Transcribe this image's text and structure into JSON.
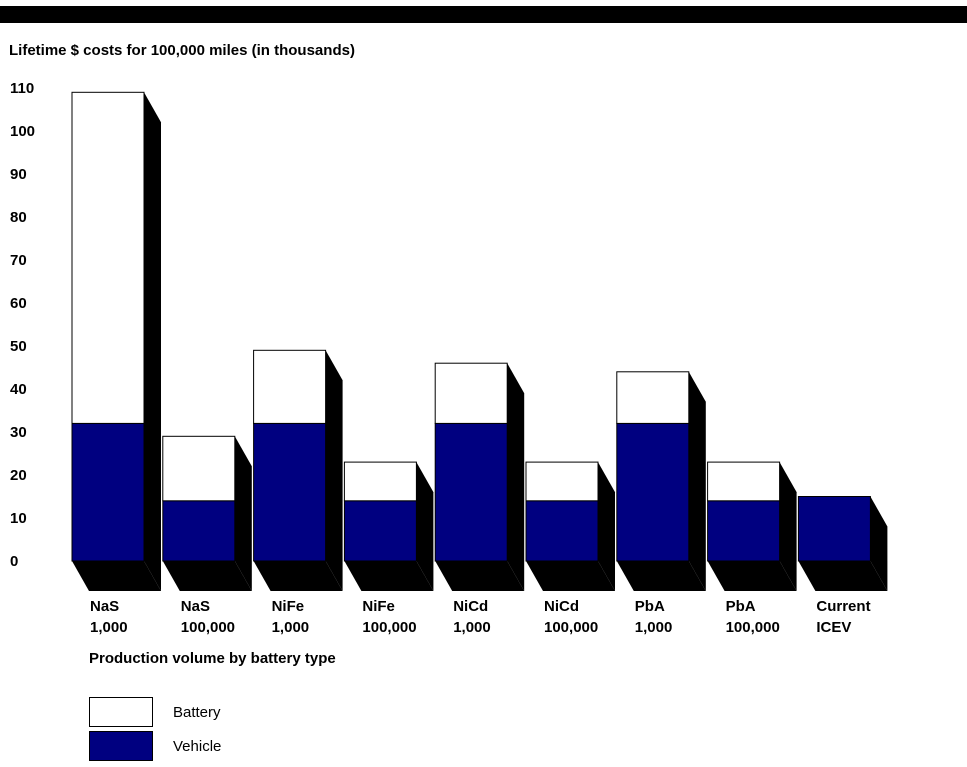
{
  "chart_data": {
    "type": "bar",
    "stacked": true,
    "title": "Lifetime $ costs for 100,000 miles (in thousands)",
    "xlabel": "Production volume by battery type",
    "ylabel": "",
    "ylim": [
      0,
      110
    ],
    "yticks": [
      0,
      10,
      20,
      30,
      40,
      50,
      60,
      70,
      80,
      90,
      100,
      110
    ],
    "categories": [
      [
        "NaS",
        "1,000"
      ],
      [
        "NaS",
        "100,000"
      ],
      [
        "NiFe",
        "1,000"
      ],
      [
        "NiFe",
        "100,000"
      ],
      [
        "NiCd",
        "1,000"
      ],
      [
        "NiCd",
        "100,000"
      ],
      [
        "PbA",
        "1,000"
      ],
      [
        "PbA",
        "100,000"
      ],
      [
        "Current",
        "ICEV"
      ]
    ],
    "series": [
      {
        "name": "Vehicle",
        "color": "#000080",
        "values": [
          32,
          14,
          32,
          14,
          32,
          14,
          32,
          14,
          15
        ]
      },
      {
        "name": "Battery",
        "color": "#ffffff",
        "values": [
          77,
          15,
          17,
          9,
          14,
          9,
          12,
          9,
          0
        ]
      }
    ],
    "legend_position": "bottom-left",
    "grid": false
  }
}
